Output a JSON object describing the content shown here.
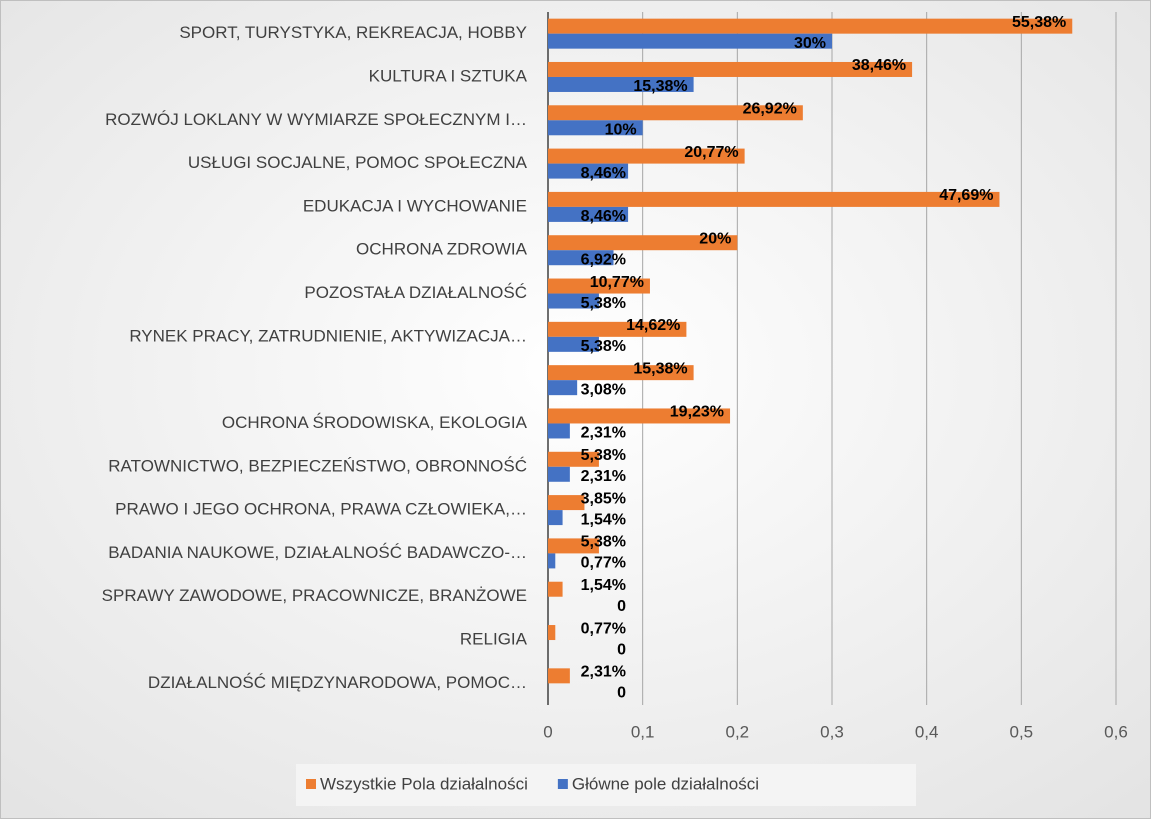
{
  "chart_data": {
    "type": "barh",
    "categories": [
      "SPORT, TURYSTYKA, REKREACJA, HOBBY",
      "KULTURA I SZTUKA",
      "ROZWÓJ LOKLANY W WYMIARZE SPOŁECZNYM I…",
      "USŁUGI SOCJALNE, POMOC SPOŁECZNA",
      "EDUKACJA I WYCHOWANIE",
      "OCHRONA ZDROWIA",
      "POZOSTAŁA DZIAŁALNOŚĆ",
      "RYNEK PRACY, ZATRUDNIENIE, AKTYWIZACJA…",
      null,
      "OCHRONA ŚRODOWISKA, EKOLOGIA",
      "RATOWNICTWO, BEZPIECZEŃSTWO, OBRONNOŚĆ",
      "PRAWO I JEGO OCHRONA, PRAWA CZŁOWIEKA,…",
      "BADANIA NAUKOWE, DZIAŁALNOŚĆ BADAWCZO-…",
      "SPRAWY ZAWODOWE, PRACOWNICZE, BRANŻOWE",
      "RELIGIA",
      "DZIAŁALNOŚĆ MIĘDZYNARODOWA, POMOC…"
    ],
    "series": [
      {
        "name": "Wszystkie Pola działalności",
        "color": "#ed7d31",
        "values": [
          0.5538,
          0.3846,
          0.2692,
          0.2077,
          0.4769,
          0.2,
          0.1077,
          0.1462,
          0.1538,
          0.1923,
          0.0538,
          0.0385,
          0.0538,
          0.0154,
          0.0077,
          0.0231
        ],
        "value_labels": [
          "55,38%",
          "38,46%",
          "26,92%",
          "20,77%",
          "47,69%",
          "20%",
          "10,77%",
          "14,62%",
          "15,38%",
          "19,23%",
          "5,38%",
          "3,85%",
          "5,38%",
          "1,54%",
          "0,77%",
          "2,31%"
        ]
      },
      {
        "name": "Główne pole działalności",
        "color": "#4472c4",
        "values": [
          0.3,
          0.1538,
          0.1,
          0.0846,
          0.0846,
          0.0692,
          0.0538,
          0.0538,
          0.0308,
          0.0231,
          0.0231,
          0.0154,
          0.0077,
          0,
          0,
          0
        ],
        "value_labels": [
          "30%",
          "15,38%",
          "10%",
          "8,46%",
          "8,46%",
          "6,92%",
          "5,38%",
          "5,38%",
          "3,08%",
          "2,31%",
          "2,31%",
          "1,54%",
          "0,77%",
          "0",
          "0",
          "0"
        ]
      }
    ],
    "xlim": [
      0,
      0.6
    ],
    "xticks": [
      0,
      {
        "value": 0.1,
        "label": "0,1"
      },
      {
        "value": 0.2,
        "label": "0,2"
      },
      {
        "value": 0.3,
        "label": "0,3"
      },
      {
        "value": 0.4,
        "label": "0,4"
      },
      {
        "value": 0.5,
        "label": "0,5"
      },
      {
        "value": 0.6,
        "label": "0,6"
      }
    ],
    "grid": true,
    "legend": "bottom"
  }
}
